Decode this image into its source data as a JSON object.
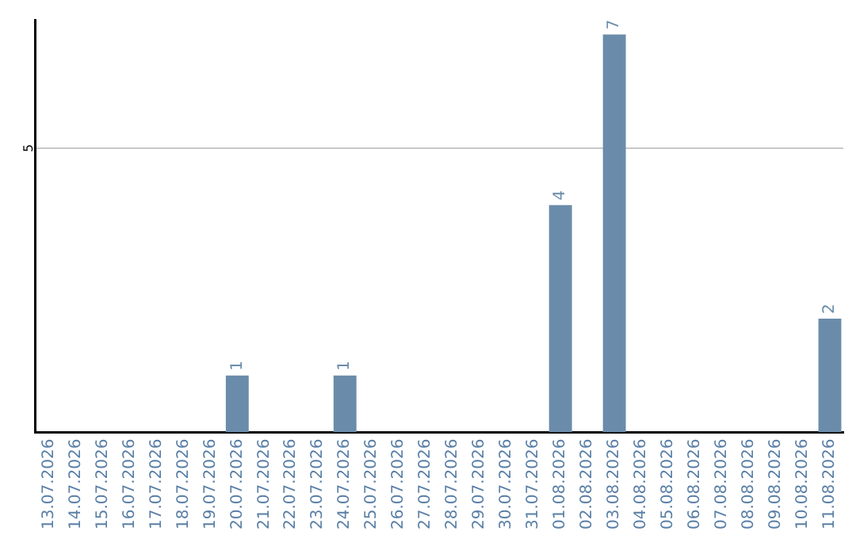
{
  "chart_data": {
    "type": "bar",
    "categories": [
      "13.07.2026",
      "14.07.2026",
      "15.07.2026",
      "16.07.2026",
      "17.07.2026",
      "18.07.2026",
      "19.07.2026",
      "20.07.2026",
      "21.07.2026",
      "22.07.2026",
      "23.07.2026",
      "24.07.2026",
      "25.07.2026",
      "26.07.2026",
      "27.07.2026",
      "28.07.2026",
      "29.07.2026",
      "30.07.2026",
      "31.07.2026",
      "01.08.2026",
      "02.08.2026",
      "03.08.2026",
      "04.08.2026",
      "05.08.2026",
      "06.08.2026",
      "07.08.2026",
      "08.08.2026",
      "09.08.2026",
      "10.08.2026",
      "11.08.2026"
    ],
    "values": [
      0,
      0,
      0,
      0,
      0,
      0,
      0,
      1,
      0,
      0,
      0,
      1,
      0,
      0,
      0,
      0,
      0,
      0,
      0,
      4,
      0,
      7,
      0,
      0,
      0,
      0,
      0,
      0,
      0,
      2
    ],
    "value_labels": [
      null,
      null,
      null,
      null,
      null,
      null,
      null,
      "1",
      null,
      null,
      null,
      "1",
      null,
      null,
      null,
      null,
      null,
      null,
      null,
      "4",
      null,
      "7",
      null,
      null,
      null,
      null,
      null,
      null,
      null,
      "2"
    ],
    "color": "#6a8caa",
    "ylim": [
      0,
      7.25
    ],
    "yticks": [
      5
    ],
    "grid": "y",
    "legend": false
  }
}
